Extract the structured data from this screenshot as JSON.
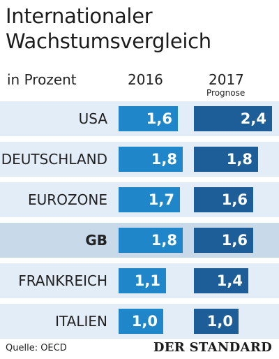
{
  "title_line1": "Internationaler",
  "title_line2": "Wachstumsvergleich",
  "unit_label": "in Prozent",
  "source": "Quelle: OECD",
  "publisher": "DER STANDARD",
  "colors": {
    "bar_2016": "#1f86c9",
    "bar_2017": "#1d5e98",
    "band": "#e2edf7",
    "band_highlight": "#c8d9ea"
  },
  "chart_data": {
    "type": "bar",
    "orientation": "horizontal",
    "title": "Internationaler Wachstumsvergleich",
    "ylabel": "in Prozent",
    "categories": [
      "USA",
      "DEUTSCHLAND",
      "EUROZONE",
      "GB",
      "FRANKREICH",
      "ITALIEN"
    ],
    "highlighted_category": "GB",
    "series": [
      {
        "name": "2016",
        "note": "",
        "values": [
          1.6,
          1.8,
          1.7,
          1.8,
          1.1,
          1.0
        ],
        "labels": [
          "1,6",
          "1,8",
          "1,7",
          "1,8",
          "1,1",
          "1,0"
        ]
      },
      {
        "name": "2017",
        "note": "Prognose",
        "values": [
          2.4,
          1.8,
          1.6,
          1.6,
          1.4,
          1.0
        ],
        "labels": [
          "2,4",
          "1,8",
          "1,6",
          "1,6",
          "1,4",
          "1,0"
        ]
      }
    ],
    "xlim": [
      0,
      2.4
    ],
    "legend": "column headers",
    "grid": false
  }
}
